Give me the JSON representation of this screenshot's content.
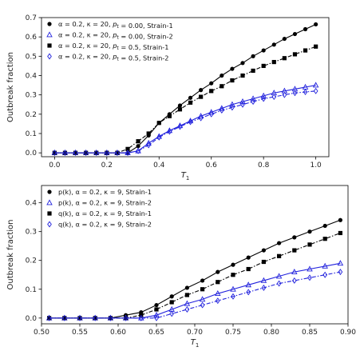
{
  "chart_data": [
    {
      "type": "scatter",
      "xlabel": "T_1",
      "ylabel": "Outbreak fraction",
      "xlim": [
        -0.05,
        1.05
      ],
      "ylim": [
        -0.02,
        0.7
      ],
      "xticks": [
        "0.0",
        "0.2",
        "0.4",
        "0.6",
        "0.8",
        "1.0"
      ],
      "xtick_values": [
        0.0,
        0.2,
        0.4,
        0.6,
        0.8,
        1.0
      ],
      "yticks": [
        "0.0",
        "0.1",
        "0.2",
        "0.3",
        "0.4",
        "0.5",
        "0.6",
        "0.7"
      ],
      "ytick_values": [
        0.0,
        0.1,
        0.2,
        0.3,
        0.4,
        0.5,
        0.6,
        0.7
      ],
      "legend_position": "top-left",
      "series": [
        {
          "name": "α = 0.2, κ = 20, p_t = 0.00, Strain-1",
          "color": "#000000",
          "marker": "circle-filled",
          "line": "solid",
          "x": [
            0.0,
            0.04,
            0.08,
            0.12,
            0.16,
            0.2,
            0.24,
            0.28,
            0.32,
            0.36,
            0.4,
            0.44,
            0.48,
            0.52,
            0.56,
            0.6,
            0.64,
            0.68,
            0.72,
            0.76,
            0.8,
            0.84,
            0.88,
            0.92,
            0.96,
            1.0
          ],
          "y": [
            0.0,
            0.0,
            0.0,
            0.0,
            0.0,
            0.0,
            0.0,
            0.0,
            0.035,
            0.09,
            0.155,
            0.2,
            0.245,
            0.285,
            0.325,
            0.36,
            0.4,
            0.435,
            0.465,
            0.5,
            0.53,
            0.56,
            0.59,
            0.615,
            0.64,
            0.665
          ]
        },
        {
          "name": "α = 0.2, κ = 20, p_t = 0.00, Strain-2",
          "color": "#2222dd",
          "marker": "triangle-open",
          "line": "solid",
          "x": [
            0.0,
            0.04,
            0.08,
            0.12,
            0.16,
            0.2,
            0.24,
            0.28,
            0.32,
            0.36,
            0.4,
            0.44,
            0.48,
            0.52,
            0.56,
            0.6,
            0.64,
            0.68,
            0.72,
            0.76,
            0.8,
            0.84,
            0.88,
            0.92,
            0.96,
            1.0
          ],
          "y": [
            0.0,
            0.0,
            0.0,
            0.0,
            0.0,
            0.0,
            0.0,
            0.0,
            0.01,
            0.05,
            0.085,
            0.115,
            0.14,
            0.165,
            0.19,
            0.21,
            0.23,
            0.25,
            0.265,
            0.28,
            0.295,
            0.31,
            0.32,
            0.33,
            0.34,
            0.35
          ]
        },
        {
          "name": "α = 0.2, κ = 20, p_t = 0.5, Strain-1",
          "color": "#000000",
          "marker": "square-filled",
          "line": "dashdot",
          "x": [
            0.0,
            0.04,
            0.08,
            0.12,
            0.16,
            0.2,
            0.24,
            0.28,
            0.32,
            0.36,
            0.4,
            0.44,
            0.48,
            0.52,
            0.56,
            0.6,
            0.64,
            0.68,
            0.72,
            0.76,
            0.8,
            0.84,
            0.88,
            0.92,
            0.96,
            1.0
          ],
          "y": [
            0.0,
            0.0,
            0.0,
            0.0,
            0.0,
            0.0,
            0.0,
            0.02,
            0.06,
            0.1,
            0.155,
            0.19,
            0.225,
            0.26,
            0.29,
            0.32,
            0.345,
            0.375,
            0.4,
            0.425,
            0.45,
            0.47,
            0.49,
            0.51,
            0.53,
            0.55
          ]
        },
        {
          "name": "α = 0.2, κ = 20, p_t = 0.5, Strain-2",
          "color": "#2222dd",
          "marker": "diamond-open",
          "line": "dashdot",
          "x": [
            0.0,
            0.04,
            0.08,
            0.12,
            0.16,
            0.2,
            0.24,
            0.28,
            0.32,
            0.36,
            0.4,
            0.44,
            0.48,
            0.52,
            0.56,
            0.6,
            0.64,
            0.68,
            0.72,
            0.76,
            0.8,
            0.84,
            0.88,
            0.92,
            0.96,
            1.0
          ],
          "y": [
            0.0,
            0.0,
            0.0,
            0.0,
            0.0,
            0.0,
            0.0,
            0.0,
            0.01,
            0.04,
            0.08,
            0.11,
            0.135,
            0.16,
            0.18,
            0.2,
            0.22,
            0.235,
            0.25,
            0.265,
            0.28,
            0.29,
            0.3,
            0.31,
            0.315,
            0.32
          ]
        }
      ]
    },
    {
      "type": "scatter",
      "xlabel": "T_1",
      "ylabel": "Outbreak fraction",
      "xlim": [
        0.5,
        0.9
      ],
      "ylim": [
        -0.02,
        0.46
      ],
      "xticks": [
        "0.50",
        "0.55",
        "0.60",
        "0.65",
        "0.70",
        "0.75",
        "0.80",
        "0.85",
        "0.90"
      ],
      "xtick_values": [
        0.5,
        0.55,
        0.6,
        0.65,
        0.7,
        0.75,
        0.8,
        0.85,
        0.9
      ],
      "yticks": [
        "0.0",
        "0.1",
        "0.2",
        "0.3",
        "0.4"
      ],
      "ytick_values": [
        0.0,
        0.1,
        0.2,
        0.3,
        0.4
      ],
      "legend_position": "top-left",
      "series": [
        {
          "name": "p(k), α = 0.2, κ = 9, Strain-1",
          "color": "#000000",
          "marker": "circle-filled",
          "line": "solid",
          "x": [
            0.51,
            0.53,
            0.55,
            0.57,
            0.59,
            0.61,
            0.63,
            0.65,
            0.67,
            0.69,
            0.71,
            0.73,
            0.75,
            0.77,
            0.79,
            0.81,
            0.83,
            0.85,
            0.87,
            0.89
          ],
          "y": [
            0.0,
            0.0,
            0.0,
            0.0,
            0.0,
            0.01,
            0.02,
            0.045,
            0.075,
            0.105,
            0.13,
            0.16,
            0.185,
            0.21,
            0.235,
            0.26,
            0.28,
            0.3,
            0.32,
            0.34
          ]
        },
        {
          "name": "p(k), α = 0.2, κ = 9, Strain-2",
          "color": "#2222dd",
          "marker": "triangle-open",
          "line": "solid",
          "x": [
            0.51,
            0.53,
            0.55,
            0.57,
            0.59,
            0.61,
            0.63,
            0.65,
            0.67,
            0.69,
            0.71,
            0.73,
            0.75,
            0.77,
            0.79,
            0.81,
            0.83,
            0.85,
            0.87,
            0.89
          ],
          "y": [
            0.0,
            0.0,
            0.0,
            0.0,
            0.0,
            0.0,
            0.0,
            0.01,
            0.03,
            0.05,
            0.065,
            0.085,
            0.1,
            0.115,
            0.13,
            0.145,
            0.16,
            0.17,
            0.18,
            0.19
          ]
        },
        {
          "name": "q(k), α = 0.2, κ = 9, Strain-1",
          "color": "#000000",
          "marker": "square-filled",
          "line": "dashdot",
          "x": [
            0.51,
            0.53,
            0.55,
            0.57,
            0.59,
            0.61,
            0.63,
            0.65,
            0.67,
            0.69,
            0.71,
            0.73,
            0.75,
            0.77,
            0.79,
            0.81,
            0.83,
            0.85,
            0.87,
            0.89
          ],
          "y": [
            0.0,
            0.0,
            0.0,
            0.0,
            0.0,
            0.0,
            0.01,
            0.03,
            0.055,
            0.08,
            0.1,
            0.125,
            0.15,
            0.17,
            0.195,
            0.215,
            0.235,
            0.255,
            0.275,
            0.295
          ]
        },
        {
          "name": "q(k), α = 0.2, κ = 9, Strain-2",
          "color": "#2222dd",
          "marker": "diamond-open",
          "line": "dashdot",
          "x": [
            0.51,
            0.53,
            0.55,
            0.57,
            0.59,
            0.61,
            0.63,
            0.65,
            0.67,
            0.69,
            0.71,
            0.73,
            0.75,
            0.77,
            0.79,
            0.81,
            0.83,
            0.85,
            0.87,
            0.89
          ],
          "y": [
            0.0,
            0.0,
            0.0,
            0.0,
            0.0,
            0.0,
            0.0,
            0.0,
            0.015,
            0.03,
            0.045,
            0.06,
            0.075,
            0.09,
            0.105,
            0.12,
            0.13,
            0.14,
            0.15,
            0.16
          ]
        }
      ]
    }
  ]
}
